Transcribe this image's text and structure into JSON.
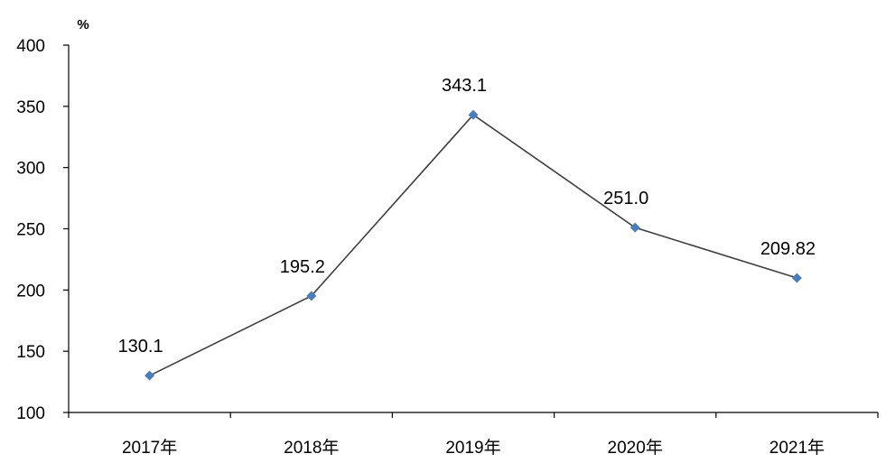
{
  "chart_data": {
    "type": "line",
    "unit_label": "%",
    "categories": [
      "2017年",
      "2018年",
      "2019年",
      "2020年",
      "2021年"
    ],
    "series": [
      {
        "values": [
          130.1,
          195.2,
          343.1,
          251.0,
          209.82
        ],
        "labels": [
          "130.1",
          "195.2",
          "343.1",
          "251.0",
          "209.82"
        ],
        "line_color": "#404040",
        "marker_color": "#4a7ebb",
        "marker": "diamond"
      }
    ],
    "ylim": [
      100,
      400
    ],
    "yticks": [
      "100",
      "150",
      "200",
      "250",
      "300",
      "350",
      "400"
    ],
    "grid": false,
    "legend": "none",
    "title": "",
    "xlabel": "",
    "ylabel": ""
  }
}
